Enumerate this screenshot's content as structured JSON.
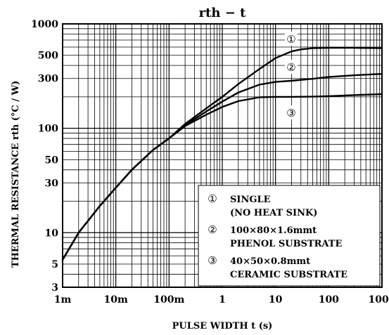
{
  "chart_data": {
    "type": "line",
    "title": "rth − t",
    "xlabel": "PULSE WIDTH   t   (s)",
    "ylabel": "THERMAL RESISTANCE   rth   (°C / W)",
    "xscale": "log",
    "yscale": "log",
    "xlim": [
      0.001,
      1000
    ],
    "ylim": [
      3,
      1000
    ],
    "grid": true,
    "x_ticks": [
      {
        "value": 0.001,
        "label": "1m"
      },
      {
        "value": 0.01,
        "label": "10m"
      },
      {
        "value": 0.1,
        "label": "100m"
      },
      {
        "value": 1,
        "label": "1"
      },
      {
        "value": 10,
        "label": "10"
      },
      {
        "value": 100,
        "label": "100"
      },
      {
        "value": 1000,
        "label": "1000"
      }
    ],
    "y_ticks": [
      {
        "value": 3,
        "label": "3"
      },
      {
        "value": 5,
        "label": "5"
      },
      {
        "value": 10,
        "label": "10"
      },
      {
        "value": 30,
        "label": "30"
      },
      {
        "value": 50,
        "label": "50"
      },
      {
        "value": 100,
        "label": "100"
      },
      {
        "value": 300,
        "label": "300"
      },
      {
        "value": 500,
        "label": "500"
      },
      {
        "value": 1000,
        "label": "1000"
      }
    ],
    "series": [
      {
        "marker": "①",
        "name": "SINGLE (NO HEAT SINK)",
        "x": [
          0.001,
          0.002,
          0.005,
          0.01,
          0.02,
          0.05,
          0.1,
          0.2,
          0.5,
          1,
          2,
          5,
          10,
          20,
          30,
          50,
          100,
          300,
          1000
        ],
        "y": [
          5.5,
          10,
          18,
          27,
          40,
          62,
          80,
          110,
          155,
          200,
          265,
          370,
          470,
          545,
          570,
          585,
          590,
          590,
          585
        ]
      },
      {
        "marker": "②",
        "name": "100×80×1.6mmt PHENOL SUBSTRATE",
        "x": [
          0.001,
          0.002,
          0.005,
          0.01,
          0.02,
          0.05,
          0.1,
          0.2,
          0.5,
          1,
          2,
          5,
          10,
          20,
          50,
          100,
          300,
          1000
        ],
        "y": [
          5.5,
          10,
          18,
          27,
          40,
          62,
          80,
          107,
          145,
          180,
          220,
          262,
          278,
          285,
          298,
          310,
          322,
          332
        ]
      },
      {
        "marker": "③",
        "name": "40×50×0.8mmt CERAMIC SUBSTRATE",
        "x": [
          0.001,
          0.002,
          0.005,
          0.01,
          0.02,
          0.05,
          0.1,
          0.2,
          0.5,
          1,
          2,
          5,
          10,
          20,
          50,
          100,
          300,
          1000
        ],
        "y": [
          5.5,
          10,
          18,
          27,
          40,
          62,
          80,
          105,
          135,
          160,
          182,
          198,
          200,
          200,
          201,
          203,
          208,
          212
        ]
      }
    ],
    "legend": {
      "placement": "bottom-right",
      "entries": [
        {
          "marker": "①",
          "lines": [
            "SINGLE",
            "(NO HEAT SINK)"
          ]
        },
        {
          "marker": "②",
          "lines": [
            "100×80×1.6mmt",
            "PHENOL SUBSTRATE"
          ]
        },
        {
          "marker": "③",
          "lines": [
            "40×50×0.8mmt",
            "CERAMIC SUBSTRATE"
          ]
        }
      ]
    },
    "curve_markers": [
      "①",
      "②",
      "③"
    ]
  }
}
